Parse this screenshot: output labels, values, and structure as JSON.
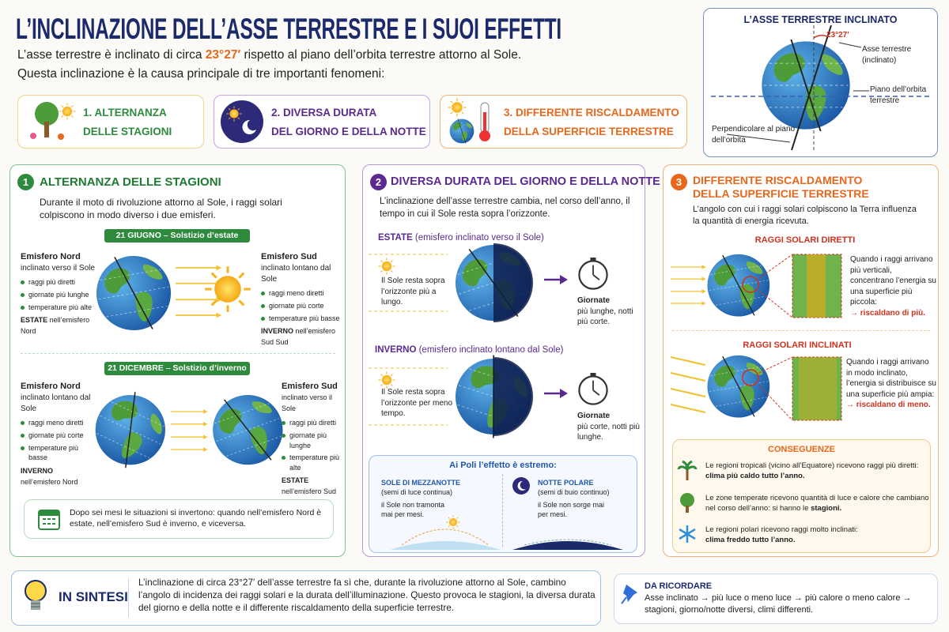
{
  "header": {
    "title": "L’INCLINAZIONE DELL’ASSE TERRESTRE E I SUOI EFFETTI",
    "intro_before": "L’asse terrestre è inclinato di circa ",
    "intro_angle": "23°27′",
    "intro_after": " rispetto al piano dell’orbita terrestre attorno al Sole.",
    "intro_line2": "Questa inclinazione è la causa principale di tre importanti fenomeni:"
  },
  "topics": [
    {
      "line1": "1. ALTERNANZA",
      "line2": "DELLE STAGIONI"
    },
    {
      "line1": "2. DIVERSA DURATA",
      "line2": "DEL GIORNO E DELLA NOTTE"
    },
    {
      "line1": "3. DIFFERENTE RISCALDAMENTO",
      "line2": "DELLA SUPERFICIE TERRESTRE"
    }
  ],
  "axis_box": {
    "title": "L’ASSE TERRESTRE INCLINATO",
    "angle": "23°27′",
    "axis_label": "Asse terrestre (inclinato)",
    "plane_label": "Piano dell’orbita terrestre",
    "perp_label": "Perpendicolare al piano dell’orbita"
  },
  "section1": {
    "number": "1",
    "title": "ALTERNANZA DELLE STAGIONI",
    "intro": "Durante il moto di rivoluzione attorno al Sole, i raggi solari colpiscono in modo diverso i due emisferi.",
    "summer": {
      "banner": "21 GIUGNO – Solstizio d’estate",
      "north": {
        "heading": "Emisfero Nord",
        "sub": "inclinato verso il Sole",
        "bullets": [
          "raggi più diretti",
          "giornate più lunghe",
          "temperature più alte"
        ],
        "footer_bold": "ESTATE",
        "footer": " nell’emisfero Nord"
      },
      "south": {
        "heading": "Emisfero Sud",
        "sub": "inclinato lontano dal Sole",
        "bullets": [
          "raggi meno diretti",
          "giornate più corte",
          "temperature più basse"
        ],
        "footer_bold": "INVERNO",
        "footer": " nell’emisfero Sud Sud"
      }
    },
    "winter": {
      "banner": "21 DICEMBRE – Solstizio d’inverno",
      "north": {
        "heading": "Emisfero Nord",
        "sub": "inclinato lontano dal Sole",
        "bullets": [
          "raggi meno diretti",
          "giornate più corte",
          "temperature più basse"
        ],
        "footer_bold": "INVERNO",
        "footer": " nell’emisfero Nord"
      },
      "south": {
        "heading": "Emisfero Sud",
        "sub": "inclinato verso il Sole",
        "bullets": [
          "raggi più diretti",
          "giornate più lunghe",
          "temperature più alte"
        ],
        "footer_bold": "ESTATE",
        "footer": "nell’emisfero Sud"
      }
    },
    "note": "Dopo sei mesi le situazioni si invertono: quando nell’emisfero Nord è estate, nell’emisfero Sud è inverno, e viceversa."
  },
  "section2": {
    "number": "2",
    "title": "DIVERSA DURATA DEL GIORNO E DELLA NOTTE",
    "intro": "L’inclinazione dell’asse terrestre cambia, nel corso dell’anno, il tempo in cui il Sole resta sopra l’orizzonte.",
    "summer": {
      "heading": "ESTATE",
      "heading_note": " (emisfero inclinato verso il Sole)",
      "sun_text": "Il Sole resta sopra l’orizzonte più a lungo.",
      "result_title": "Giornate",
      "result": "più lunghe, notti più corte."
    },
    "winter": {
      "heading": "INVERNO",
      "heading_note": " (emisfero inclinato lontano dal Sole)",
      "sun_text": "Il Sole resta sopra l’orizzonte per meno tempo.",
      "result_title": "Giornate",
      "result": "più corte, notti più lunghe."
    },
    "poles": {
      "title": "Ai Poli l’effetto è estremo:",
      "day": {
        "title": "SOLE DI MEZZANOTTE",
        "sub": "(semi di luce continua)",
        "text": "il Sole non tramonta mai per mesi."
      },
      "night": {
        "title": "NOTTE POLARE",
        "sub": "(semi di buio continuo)",
        "text": "il Sole non sorge mai per mesi."
      }
    }
  },
  "section3": {
    "number": "3",
    "title": "DIFFERENTE RISCALDAMENTO DELLA SUPERFICIE TERRESTRE",
    "intro": "L’angolo con cui i raggi solari colpiscono la Terra influenza la quantità di energia ricevuta.",
    "direct": {
      "title": "RAGGI SOLARI DIRETTI",
      "text": "Quando i raggi arrivano più verticali, concentrano l’energia su una superficie più piccola:",
      "result": "→ riscaldano di più."
    },
    "inclined": {
      "title": "RAGGI SOLARI INCLINATI",
      "text": "Quando i raggi arrivano in modo inclinato, l’energia si distribuisce su una superficie più ampia:",
      "result": "→ riscaldano di meno."
    },
    "consequences": {
      "title": "CONSEGUENZE",
      "items": [
        {
          "text": "Le regioni tropicali (vicino all’Equatore) ricevono raggi più diretti:",
          "bold": "clima più caldo tutto l’anno."
        },
        {
          "text": "Le zone temperate ricevono quantità di luce e calore che cambiano nel corso dell’anno: si hanno le",
          "bold": "stagioni."
        },
        {
          "text": "Le regioni polari ricevono raggi molto inclinati:",
          "bold": "clima freddo tutto l’anno."
        }
      ]
    }
  },
  "summary": {
    "title": "IN SINTESI",
    "text": "L’inclinazione di circa 23°27′ dell’asse terrestre fa sì che, durante la rivoluzione attorno al Sole, cambino l’angolo di incidenza dei raggi solari e la durata dell’illuminazione. Questo provoca le stagioni, la diversa durata del giorno e della notte e il differente riscaldamento della superficie terrestre."
  },
  "remember": {
    "title": "DA RICORDARE",
    "text": "Asse inclinato → più luce o meno luce → più calore o meno calore → stagioni, giorno/notte diversi, climi differenti."
  }
}
